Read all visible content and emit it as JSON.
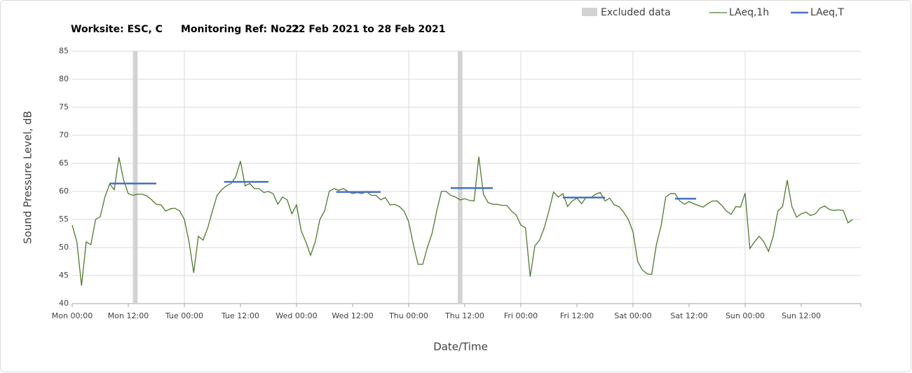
{
  "chart_data": {
    "type": "line",
    "title": [
      "Worksite: ESC, C",
      "Monitoring Ref: No22",
      "22 Feb 2021 to 28 Feb 2021"
    ],
    "x_label": "Date/Time",
    "y_label": "Sound Pressure Level, dB",
    "xlim": [
      0,
      168
    ],
    "ylim": [
      40,
      85
    ],
    "yticks": [
      40,
      45,
      50,
      55,
      60,
      65,
      70,
      75,
      80,
      85
    ],
    "xticks": [
      {
        "value": 0,
        "label": "Mon 00:00"
      },
      {
        "value": 12,
        "label": "Mon 12:00"
      },
      {
        "value": 24,
        "label": "Tue 00:00"
      },
      {
        "value": 36,
        "label": "Tue 12:00"
      },
      {
        "value": 48,
        "label": "Wed 00:00"
      },
      {
        "value": 60,
        "label": "Wed 12:00"
      },
      {
        "value": 72,
        "label": "Thu 00:00"
      },
      {
        "value": 84,
        "label": "Thu 12:00"
      },
      {
        "value": 96,
        "label": "Fri 00:00"
      },
      {
        "value": 108,
        "label": "Fri 12:00"
      },
      {
        "value": 120,
        "label": "Sat 00:00"
      },
      {
        "value": 132,
        "label": "Sat 12:00"
      },
      {
        "value": 144,
        "label": "Sun 00:00"
      },
      {
        "value": 156,
        "label": "Sun 12:00"
      }
    ],
    "grid": true,
    "excluded": {
      "name": "Excluded data",
      "color": "#d3d3d3",
      "ranges": [
        {
          "start": 13,
          "end": 14
        },
        {
          "start": 82.5,
          "end": 83.5
        }
      ]
    },
    "series": [
      {
        "name": "LAeq,1h",
        "color": "#4e7a2c",
        "x": [
          0,
          1,
          2,
          3,
          4,
          5,
          6,
          7,
          8,
          9,
          10,
          11,
          12,
          13,
          14,
          15,
          16,
          17,
          18,
          19,
          20,
          21,
          22,
          23,
          24,
          25,
          26,
          27,
          28,
          29,
          30,
          31,
          32,
          33,
          34,
          35,
          36,
          37,
          38,
          39,
          40,
          41,
          42,
          43,
          44,
          45,
          46,
          47,
          48,
          49,
          50,
          51,
          52,
          53,
          54,
          55,
          56,
          57,
          58,
          59,
          60,
          61,
          62,
          63,
          64,
          65,
          66,
          67,
          68,
          69,
          70,
          71,
          72,
          73,
          74,
          75,
          76,
          77,
          78,
          79,
          80,
          81,
          82,
          83,
          84,
          85,
          86,
          87,
          88,
          89,
          90,
          91,
          92,
          93,
          94,
          95,
          96,
          97,
          98,
          99,
          100,
          101,
          102,
          103,
          104,
          105,
          106,
          107,
          108,
          109,
          110,
          111,
          112,
          113,
          114,
          115,
          116,
          117,
          118,
          119,
          120,
          121,
          122,
          123,
          124,
          125,
          126,
          127,
          128,
          129,
          130,
          131,
          132,
          133,
          134,
          135,
          136,
          137,
          138,
          139,
          140,
          141,
          142,
          143,
          144,
          145,
          146,
          147,
          148,
          149,
          150,
          151,
          152,
          153,
          154,
          155,
          156,
          157,
          158,
          159,
          160,
          161,
          162,
          163,
          164,
          165,
          166,
          167
        ],
        "values": [
          54,
          51,
          43.2,
          51,
          50.5,
          55,
          55.5,
          59,
          61.3,
          60.3,
          66.1,
          62,
          59.6,
          59.3,
          59.5,
          59.5,
          59.2,
          58.5,
          57.7,
          57.6,
          56.5,
          56.9,
          57,
          56.5,
          55,
          51,
          45.5,
          52,
          51.3,
          53.5,
          56.5,
          59.3,
          60.3,
          61,
          61.4,
          62.6,
          65.4,
          61,
          61.4,
          60.5,
          60.5,
          59.8,
          60,
          59.6,
          57.7,
          59,
          58.5,
          56,
          57.6,
          53,
          51,
          48.6,
          51,
          55,
          56.5,
          60,
          60.5,
          60.2,
          60.5,
          60,
          59.6,
          59.8,
          59.6,
          60,
          59.3,
          59.3,
          58.5,
          58.9,
          57.6,
          57.7,
          57.3,
          56.5,
          54.6,
          50.5,
          47,
          47,
          50,
          52.5,
          56.5,
          60,
          60,
          59.3,
          59,
          58.5,
          58.7,
          58.4,
          58.3,
          66.2,
          59.5,
          58,
          57.7,
          57.7,
          57.5,
          57.5,
          56.5,
          55.8,
          54,
          53.5,
          44.8,
          50.3,
          51.3,
          53.5,
          56.5,
          59.9,
          59,
          59.6,
          57.3,
          58.3,
          58.8,
          57.8,
          59,
          58.9,
          59.5,
          59.8,
          58.3,
          58.8,
          57.6,
          57.3,
          56.3,
          55,
          52.8,
          47.5,
          46,
          45.3,
          45.2,
          50.5,
          53.8,
          59,
          59.6,
          59.6,
          58.3,
          57.7,
          58.2,
          57.8,
          57.5,
          57.2,
          57.8,
          58.3,
          58.3,
          57.5,
          56.5,
          55.9,
          57.3,
          57.2,
          59.7,
          49.8,
          51,
          52,
          51,
          49.3,
          52,
          56.5,
          57.3,
          62,
          57.3,
          55.4,
          56,
          56.3,
          55.7,
          56,
          57,
          57.4,
          56.8,
          56.6,
          56.7,
          56.6,
          54.4,
          55
        ]
      },
      {
        "name": "LAeq,T",
        "color": "#4472c4",
        "segments": [
          {
            "start": 8,
            "end": 18,
            "value": 61.4
          },
          {
            "start": 32.5,
            "end": 42,
            "value": 61.7
          },
          {
            "start": 56.5,
            "end": 66,
            "value": 59.9
          },
          {
            "start": 81,
            "end": 90,
            "value": 60.6
          },
          {
            "start": 105,
            "end": 114,
            "value": 58.9
          },
          {
            "start": 129,
            "end": 133.5,
            "value": 58.7
          }
        ]
      }
    ]
  }
}
